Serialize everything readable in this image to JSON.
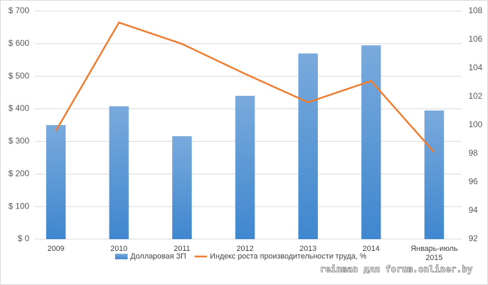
{
  "chart_data": {
    "type": "bar-line",
    "categories": [
      "2009",
      "2010",
      "2011",
      "2012",
      "2013",
      "2014",
      "Январь-июль 2015"
    ],
    "series": [
      {
        "name": "Долларовая ЗП",
        "type": "bar",
        "color": "#5b9bd5",
        "values": [
          350,
          408,
          316,
          440,
          570,
          595,
          395
        ]
      },
      {
        "name": "Индекс роста производительности труда, %",
        "type": "line",
        "axis": "y2",
        "color": "#ed7d31",
        "values": [
          99.6,
          107.2,
          105.7,
          103.6,
          101.6,
          103.1,
          98.1
        ]
      }
    ],
    "ylim": [
      0,
      700
    ],
    "yticks": [
      {
        "value": 0,
        "label": "$ 0"
      },
      {
        "value": 100,
        "label": "$ 100"
      },
      {
        "value": 200,
        "label": "$ 200"
      },
      {
        "value": 300,
        "label": "$ 300"
      },
      {
        "value": 400,
        "label": "$ 400"
      },
      {
        "value": 500,
        "label": "$ 500"
      },
      {
        "value": 600,
        "label": "$ 600"
      },
      {
        "value": 700,
        "label": "$ 700"
      }
    ],
    "y2lim": [
      92,
      108
    ],
    "y2ticks": [
      92,
      94,
      96,
      98,
      100,
      102,
      104,
      106,
      108
    ],
    "grid": true,
    "legend": "bottom",
    "watermark": "reinman для forum.onliner.by"
  }
}
